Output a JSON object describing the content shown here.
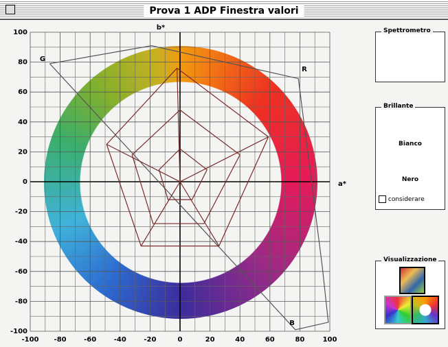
{
  "window": {
    "title": "Prova 1 ADP Finestra valori"
  },
  "chart_data": {
    "type": "line",
    "x_label": "a*",
    "y_label": "b*",
    "xlim": [
      -100,
      100
    ],
    "ylim": [
      -100,
      100
    ],
    "xticks": [
      -100,
      -80,
      -60,
      -40,
      -20,
      0,
      20,
      40,
      60,
      80,
      100
    ],
    "yticks": [
      -100,
      -80,
      -60,
      -40,
      -20,
      0,
      20,
      40,
      60,
      80,
      100
    ],
    "grid": true,
    "annotations": [
      "G",
      "R",
      "B"
    ],
    "series": [
      {
        "color": "#555555",
        "x": [
          -87,
          -19,
          79,
          95,
          99,
          77,
          -87
        ],
        "values": [
          79,
          91,
          69,
          -57,
          -94,
          -99,
          79
        ]
      },
      {
        "color": "#7a2a2a",
        "x": [
          -2,
          59,
          26,
          -26,
          -49,
          -2
        ],
        "values": [
          76,
          30,
          -43,
          -43,
          25,
          76
        ]
      },
      {
        "color": "#7a2a2a",
        "x": [
          0,
          40,
          16,
          -18,
          -32,
          0
        ],
        "values": [
          48,
          18,
          -28,
          -28,
          18,
          48
        ]
      },
      {
        "color": "#7a2a2a",
        "x": [
          0,
          18,
          8,
          -8,
          -14,
          0
        ],
        "values": [
          22,
          8,
          -12,
          -12,
          8,
          22
        ]
      },
      {
        "color": "#7a2a2a",
        "x": [
          0,
          -2
        ],
        "values": [
          0,
          76
        ]
      },
      {
        "color": "#7a2a2a",
        "x": [
          0,
          59
        ],
        "values": [
          0,
          30
        ]
      },
      {
        "color": "#7a2a2a",
        "x": [
          0,
          26
        ],
        "values": [
          0,
          -43
        ]
      },
      {
        "color": "#7a2a2a",
        "x": [
          0,
          -26
        ],
        "values": [
          0,
          -43
        ]
      },
      {
        "color": "#7a2a2a",
        "x": [
          0,
          -49
        ],
        "values": [
          0,
          25
        ]
      }
    ]
  },
  "panels": {
    "spettrometro": {
      "title": "Spettrometro"
    },
    "brillante": {
      "title": "Brillante",
      "items": [
        "Bianco",
        "Nero"
      ],
      "checkbox": "considerare"
    },
    "visualizzazione": {
      "title": "Visualizzazione"
    }
  }
}
